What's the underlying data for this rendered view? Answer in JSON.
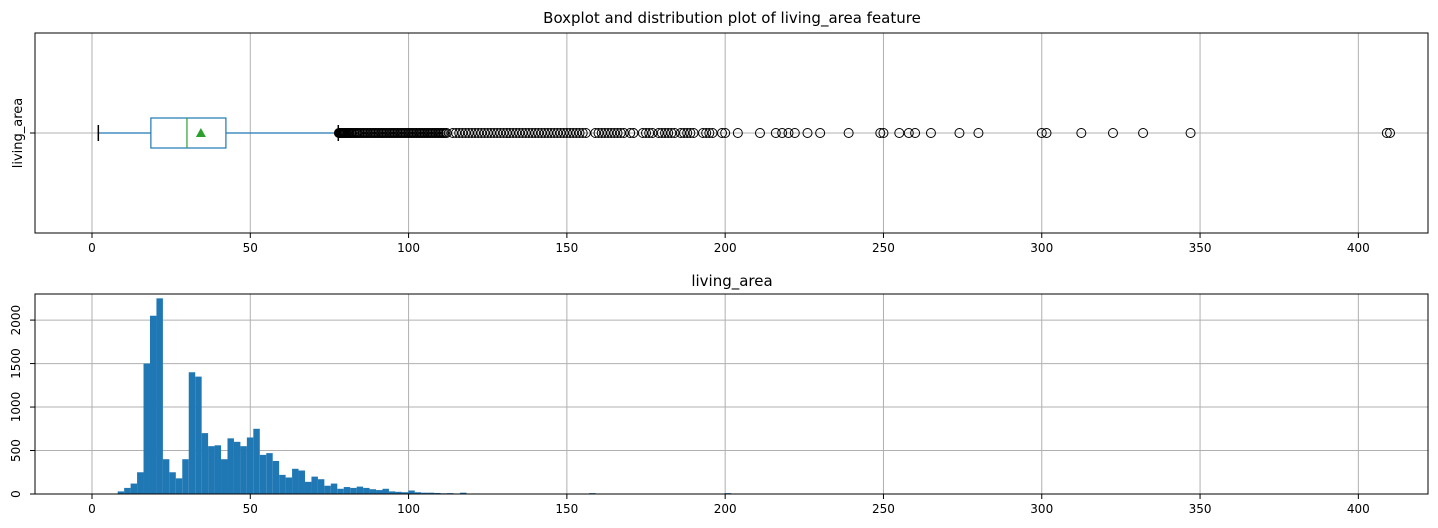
{
  "chart_data": [
    {
      "type": "boxplot",
      "title": "Boxplot and distribution plot of living_area feature",
      "ylabel": "living_area",
      "xlim": [
        -18,
        422
      ],
      "xticks": [
        0,
        50,
        100,
        150,
        200,
        250,
        300,
        350,
        400
      ],
      "grid": true,
      "box": {
        "whisker_low": 2,
        "q1": 18.6,
        "median": 30,
        "mean": 34.4,
        "q3": 42.3,
        "whisker_high": 77.8,
        "color": "#1f77b4",
        "median_color": "#2ca02c",
        "mean_color": "#2ca02c"
      },
      "outlier_color": "#000000",
      "outliers": [
        78,
        78.2,
        78.4,
        78.6,
        78.8,
        79,
        79.2,
        79.4,
        79.6,
        79.8,
        80,
        80.3,
        80.6,
        81,
        81.3,
        81.7,
        82,
        82.4,
        82.8,
        83.2,
        83.6,
        84,
        84.5,
        85,
        85.5,
        86,
        86.5,
        87,
        87.5,
        88,
        88.5,
        89,
        89.5,
        90,
        90.5,
        91,
        91.5,
        92,
        92.5,
        93,
        93.5,
        94,
        94.5,
        95,
        95.5,
        96,
        96.5,
        97,
        97.5,
        98,
        98.5,
        99,
        99.5,
        100,
        100.5,
        101,
        101.5,
        102,
        102.5,
        103,
        103.5,
        104,
        104.5,
        105,
        105.5,
        106,
        106.5,
        107,
        107.5,
        108,
        108.5,
        109,
        109.5,
        110,
        110.5,
        111,
        111.5,
        112,
        114,
        115,
        116,
        117,
        118,
        119,
        120,
        121,
        122,
        123,
        124,
        125,
        126,
        127,
        128,
        129,
        130,
        131,
        132,
        133,
        134,
        135,
        136,
        137,
        138,
        139,
        140,
        141,
        142,
        143,
        144,
        145,
        146,
        147,
        148,
        149,
        150,
        151,
        152,
        153,
        154,
        155,
        156,
        159,
        160,
        161,
        162,
        163,
        164,
        165,
        166,
        167,
        168,
        170,
        171,
        174,
        175,
        176,
        177,
        179,
        180,
        181,
        182,
        183,
        184,
        186,
        187,
        188,
        189,
        190,
        193,
        194,
        195,
        196,
        199,
        200,
        204,
        211,
        216,
        218,
        220,
        222,
        226,
        230,
        239,
        249,
        250,
        255,
        258,
        260,
        265,
        274,
        280,
        300,
        301.5,
        312.5,
        322.5,
        332,
        347,
        409,
        410
      ]
    },
    {
      "type": "histogram",
      "title": "living_area",
      "xlim": [
        -18,
        422
      ],
      "ylim": [
        0,
        2300
      ],
      "xticks": [
        0,
        50,
        100,
        150,
        200,
        250,
        300,
        350,
        400
      ],
      "yticks": [
        0,
        500,
        1000,
        1500,
        2000
      ],
      "grid": true,
      "color": "#1f77b4",
      "bin_start": 2,
      "bin_width": 2.04,
      "counts": [
        0,
        0,
        0,
        30,
        70,
        120,
        250,
        1500,
        2050,
        2250,
        400,
        250,
        180,
        400,
        1400,
        1350,
        700,
        550,
        560,
        400,
        640,
        600,
        550,
        650,
        750,
        450,
        470,
        380,
        220,
        190,
        290,
        270,
        140,
        200,
        170,
        95,
        120,
        60,
        80,
        70,
        85,
        70,
        55,
        45,
        60,
        30,
        25,
        20,
        40,
        20,
        15,
        15,
        12,
        8,
        10,
        6,
        15,
        5,
        6,
        4,
        5,
        4,
        3,
        3,
        3,
        2,
        1,
        1,
        1,
        1,
        1,
        1,
        1,
        1,
        1,
        1,
        10,
        0,
        0,
        0,
        0,
        0,
        0,
        0,
        0,
        0,
        0,
        0,
        0,
        0,
        0,
        0,
        0,
        0,
        0,
        0,
        0,
        10,
        0,
        0,
        0,
        0,
        0,
        0,
        0,
        0,
        0,
        0,
        0,
        0,
        0,
        0,
        0,
        0,
        0,
        0,
        0,
        0,
        0,
        0,
        0,
        0,
        0,
        0,
        0,
        0,
        0,
        0,
        0,
        0,
        0,
        0,
        0,
        0,
        0,
        0,
        0,
        0,
        0,
        0,
        0,
        0,
        0,
        0,
        0,
        0,
        0,
        0,
        0,
        0,
        0,
        0,
        0,
        0,
        0,
        0,
        0,
        0,
        0,
        0,
        0,
        0,
        0,
        0,
        0,
        0,
        0,
        0,
        0,
        0,
        0,
        0,
        0,
        0,
        0,
        0,
        0,
        0,
        0,
        0,
        0,
        0,
        0,
        0,
        0,
        0,
        0,
        0,
        0,
        0,
        0,
        0,
        0,
        0,
        0,
        0,
        0,
        0,
        0,
        0
      ]
    }
  ]
}
